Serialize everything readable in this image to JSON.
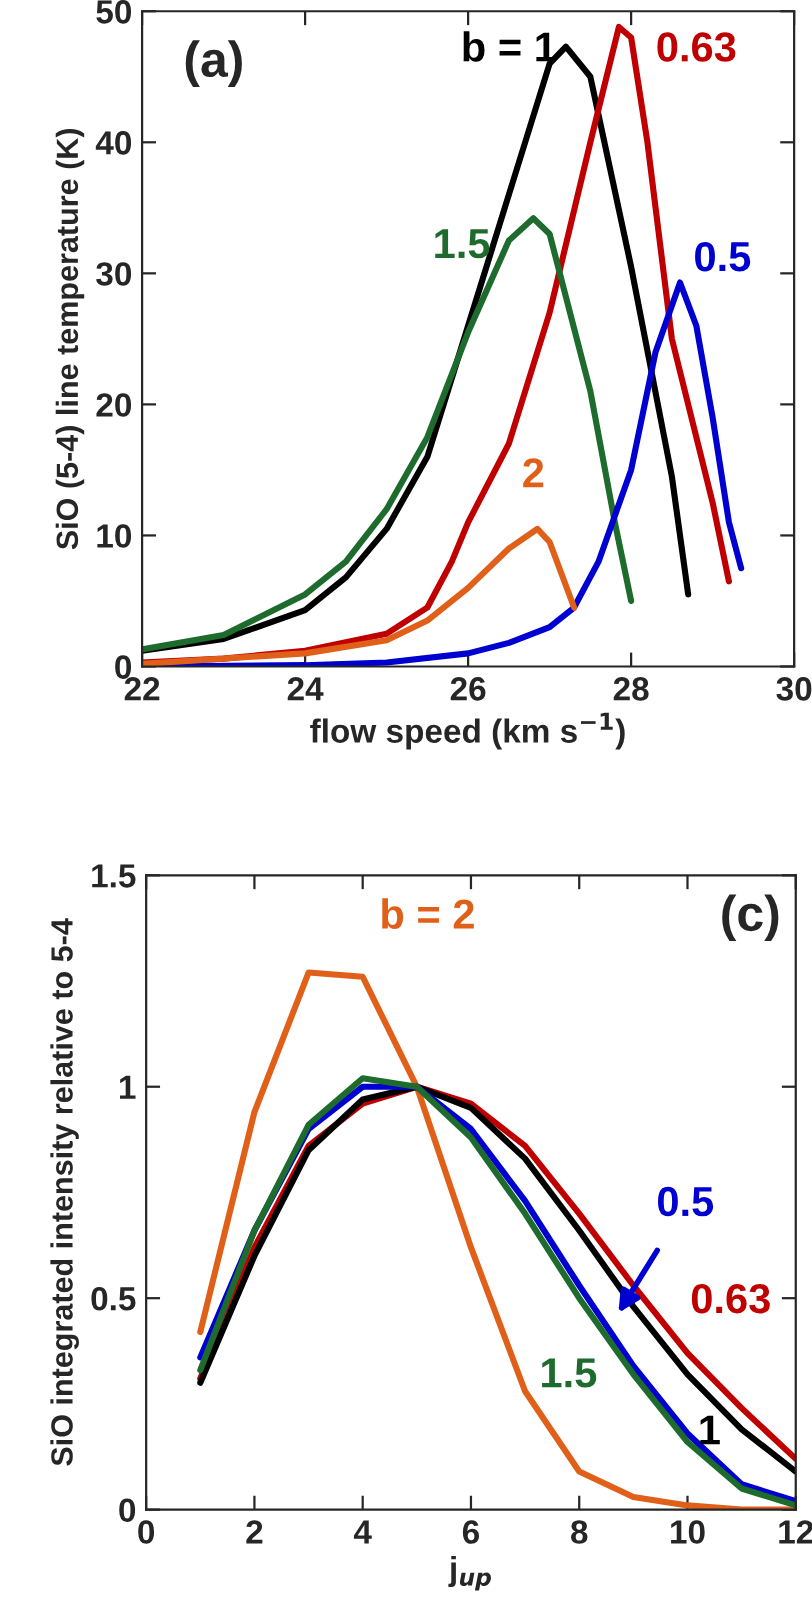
{
  "chart_data": [
    {
      "type": "line",
      "xlabel": "flow speed (km s$^{−1}$)",
      "ylabel": "SiO (5-4) line temperature (K)",
      "xlim": [
        22,
        30
      ],
      "ylim": [
        0,
        50
      ],
      "xticks": [
        22,
        24,
        26,
        28,
        30
      ],
      "yticks": [
        0,
        10,
        20,
        30,
        40,
        50
      ],
      "grid": false,
      "legend": false,
      "marker": "none",
      "series": [
        {
          "name": "b = 1",
          "color": "#000000",
          "x": [
            22,
            23,
            24,
            24.5,
            25,
            25.5,
            26,
            26.5,
            27,
            27.2,
            27.5,
            28,
            28.5,
            28.7
          ],
          "values": [
            1.2,
            2.1,
            4.3,
            6.8,
            10.5,
            16,
            26,
            36,
            46,
            47.3,
            45,
            30.5,
            14.5,
            5.5
          ]
        },
        {
          "name": "0.63",
          "color": "#c00000",
          "x": [
            22,
            23,
            24,
            25,
            25.5,
            25.8,
            26,
            26.5,
            27,
            27.5,
            27.85,
            28,
            28.2,
            28.5,
            29,
            29.2
          ],
          "values": [
            0.3,
            0.6,
            1.2,
            2.5,
            4.5,
            8,
            11,
            17,
            27,
            40,
            48.8,
            48,
            40,
            25,
            12.5,
            6.5
          ]
        },
        {
          "name": "1.5",
          "color": "#1e6b2e",
          "x": [
            22,
            23,
            24,
            24.5,
            25,
            25.5,
            26,
            26.5,
            26.8,
            27,
            27.5,
            27.8,
            28
          ],
          "values": [
            1.3,
            2.4,
            5.5,
            8,
            12,
            17.5,
            25.5,
            32.5,
            34.2,
            33,
            21,
            11,
            5
          ]
        },
        {
          "name": "0.5",
          "color": "#0000d0",
          "x": [
            22,
            24,
            25,
            26,
            26.5,
            27,
            27.3,
            27.6,
            28,
            28.3,
            28.6,
            28.8,
            29,
            29.2,
            29.35
          ],
          "values": [
            0,
            0.1,
            0.3,
            1,
            1.8,
            3,
            4.5,
            8,
            15,
            24,
            29.3,
            26,
            19,
            11,
            7.5
          ]
        },
        {
          "name": "2",
          "color": "#e0601a",
          "x": [
            22,
            24,
            25,
            25.5,
            26,
            26.5,
            26.85,
            27,
            27.15,
            27.3
          ],
          "values": [
            0.2,
            1,
            2,
            3.5,
            6,
            9,
            10.5,
            9.5,
            7,
            4.5
          ]
        }
      ],
      "annotations": [
        "(a)"
      ]
    },
    {
      "type": "line",
      "xlabel": "j$_{up}$",
      "ylabel": "SiO integrated intensity relative to 5-4",
      "xlim": [
        0,
        12
      ],
      "ylim": [
        0,
        1.5
      ],
      "xticks": [
        0,
        2,
        4,
        6,
        8,
        10,
        12
      ],
      "yticks": [
        0,
        0.5,
        1,
        1.5
      ],
      "grid": false,
      "legend": false,
      "marker": "none",
      "series": [
        {
          "name": "b = 2",
          "color": "#e0601a",
          "x": [
            1,
            2,
            3,
            4,
            5,
            6,
            7,
            8,
            9,
            10,
            11,
            12
          ],
          "values": [
            0.42,
            0.94,
            1.27,
            1.26,
            1.0,
            0.62,
            0.28,
            0.09,
            0.03,
            0.01,
            0.0,
            0.0
          ]
        },
        {
          "name": "0.63",
          "color": "#c00000",
          "x": [
            1,
            2,
            3,
            4,
            5,
            6,
            7,
            8,
            9,
            10,
            11,
            12
          ],
          "values": [
            0.31,
            0.62,
            0.86,
            0.96,
            1.0,
            0.96,
            0.86,
            0.7,
            0.53,
            0.37,
            0.24,
            0.12
          ]
        },
        {
          "name": "1",
          "color": "#000000",
          "x": [
            1,
            2,
            3,
            4,
            5,
            6,
            7,
            8,
            9,
            10,
            11,
            12
          ],
          "values": [
            0.3,
            0.6,
            0.85,
            0.97,
            1.0,
            0.95,
            0.83,
            0.66,
            0.48,
            0.32,
            0.19,
            0.09
          ]
        },
        {
          "name": "0.5",
          "color": "#0000d0",
          "x": [
            1,
            2,
            3,
            4,
            5,
            6,
            7,
            8,
            9,
            10,
            11,
            12
          ],
          "values": [
            0.36,
            0.66,
            0.9,
            1.0,
            1.0,
            0.9,
            0.73,
            0.53,
            0.34,
            0.18,
            0.06,
            0.02
          ]
        },
        {
          "name": "1.5",
          "color": "#1e6b2e",
          "x": [
            1,
            2,
            3,
            4,
            5,
            6,
            7,
            8,
            9,
            10,
            11,
            12
          ],
          "values": [
            0.33,
            0.66,
            0.91,
            1.02,
            1.0,
            0.88,
            0.7,
            0.5,
            0.32,
            0.16,
            0.05,
            0.01
          ]
        }
      ],
      "annotations": [
        "(c)"
      ]
    }
  ]
}
